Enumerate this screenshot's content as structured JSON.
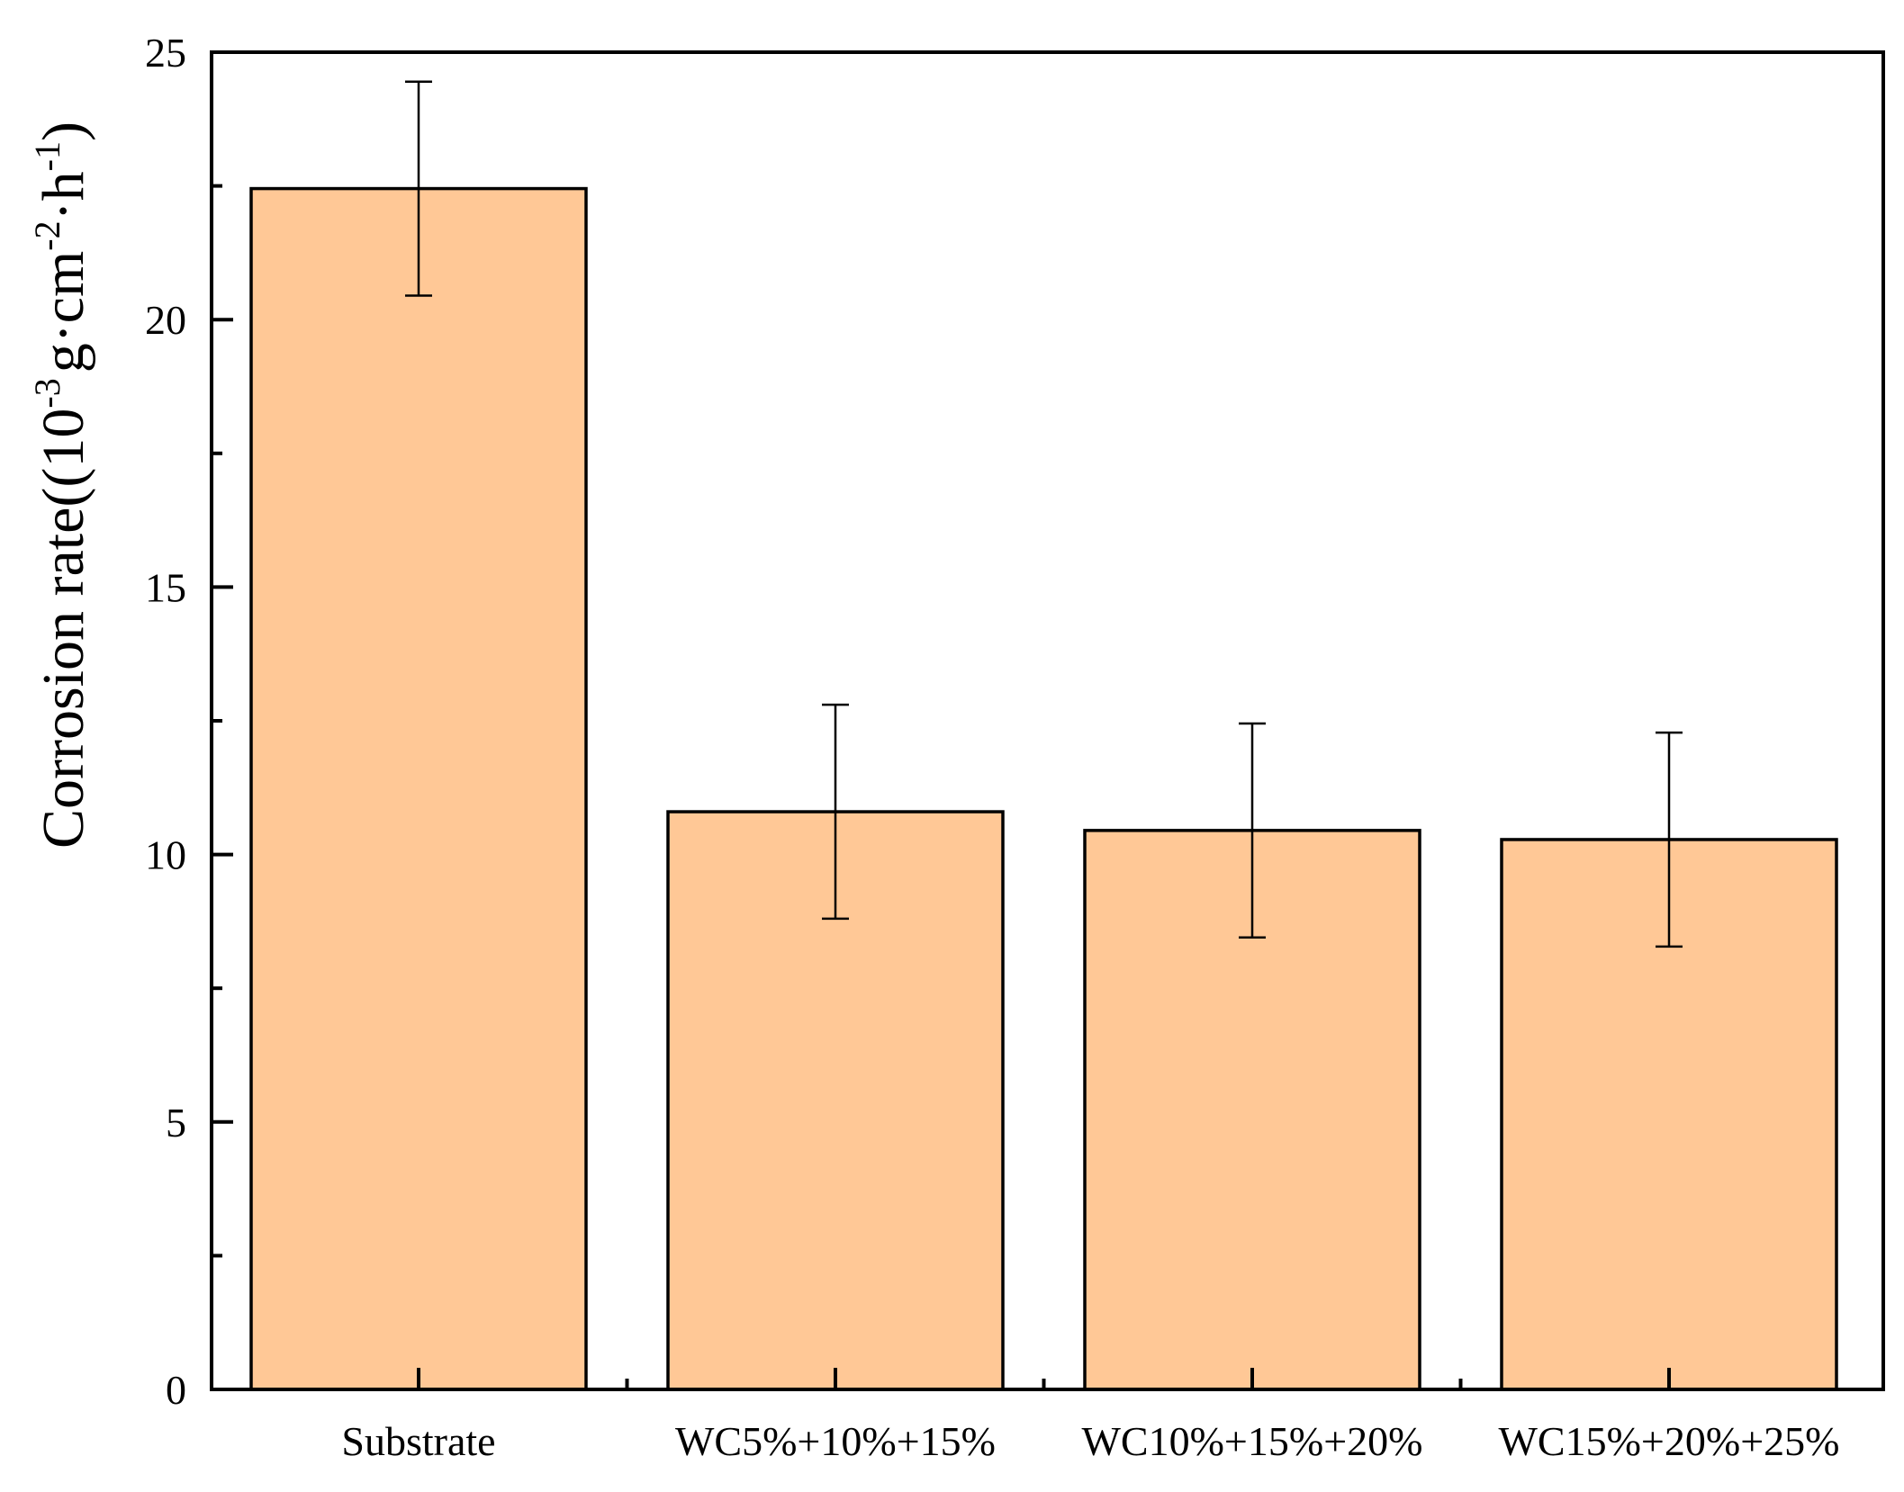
{
  "chart_data": {
    "type": "bar",
    "title": "",
    "xlabel": "",
    "ylabel": {
      "prefix": "Corrosion rate((10",
      "sup1": "-3",
      "mid1": "g·cm",
      "sup2": "-2",
      "mid2": "·h",
      "sup3": "-1",
      "suffix": ")"
    },
    "categories": [
      "Substrate",
      "WC5%+10%+15%",
      "WC10%+15%+20%",
      "WC15%+20%+25%"
    ],
    "values": [
      22.45,
      10.8,
      10.45,
      10.28
    ],
    "errors": [
      2.0,
      2.0,
      2.0,
      2.0
    ],
    "ylim": [
      0,
      25
    ],
    "yticks": [
      0,
      5,
      10,
      15,
      20,
      25
    ],
    "yticks_minor": [
      2.5,
      7.5,
      12.5,
      17.5,
      22.5
    ],
    "grid": false,
    "bar_color": "#FFC896",
    "edge_color": "#000000"
  }
}
